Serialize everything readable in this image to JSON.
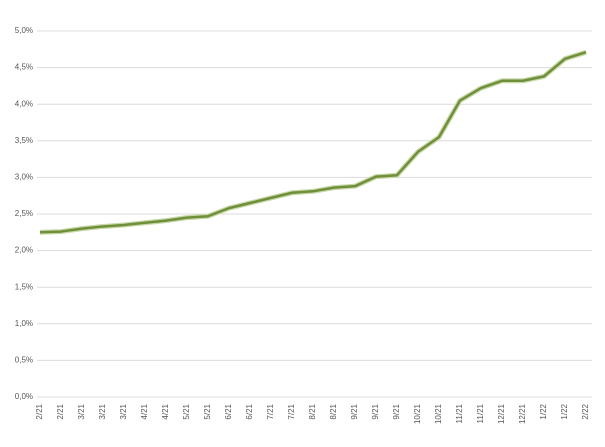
{
  "chart_data": {
    "type": "line",
    "categories": [
      "2/21",
      "2/21",
      "3/21",
      "3/21",
      "3/21",
      "4/21",
      "4/21",
      "5/21",
      "5/21",
      "6/21",
      "6/21",
      "7/21",
      "7/21",
      "8/21",
      "8/21",
      "9/21",
      "9/21",
      "9/21",
      "10/21",
      "10/21",
      "11/21",
      "11/21",
      "12/21",
      "12/21",
      "1/22",
      "1/22",
      "2/22"
    ],
    "values": [
      2.25,
      2.26,
      2.3,
      2.33,
      2.35,
      2.38,
      2.41,
      2.45,
      2.47,
      2.58,
      2.65,
      2.72,
      2.79,
      2.81,
      2.86,
      2.88,
      3.01,
      3.03,
      3.35,
      3.55,
      4.05,
      4.22,
      4.32,
      4.32,
      4.38,
      4.62,
      4.71
    ],
    "color": "#6f8f3a",
    "ylim": [
      0,
      5
    ],
    "yticks": [
      {
        "value": 0,
        "label": "0,0%"
      },
      {
        "value": 0.5,
        "label": "0,5%"
      },
      {
        "value": 1,
        "label": "1,0%"
      },
      {
        "value": 1.5,
        "label": "1,5%"
      },
      {
        "value": 2,
        "label": "2,0%"
      },
      {
        "value": 2.5,
        "label": "2,5%"
      },
      {
        "value": 3,
        "label": "3,0%"
      },
      {
        "value": 3.5,
        "label": "3,5%"
      },
      {
        "value": 4,
        "label": "4,0%"
      },
      {
        "value": 4.5,
        "label": "4,5%"
      },
      {
        "value": 5,
        "label": "5,0%"
      }
    ],
    "grid": true
  }
}
